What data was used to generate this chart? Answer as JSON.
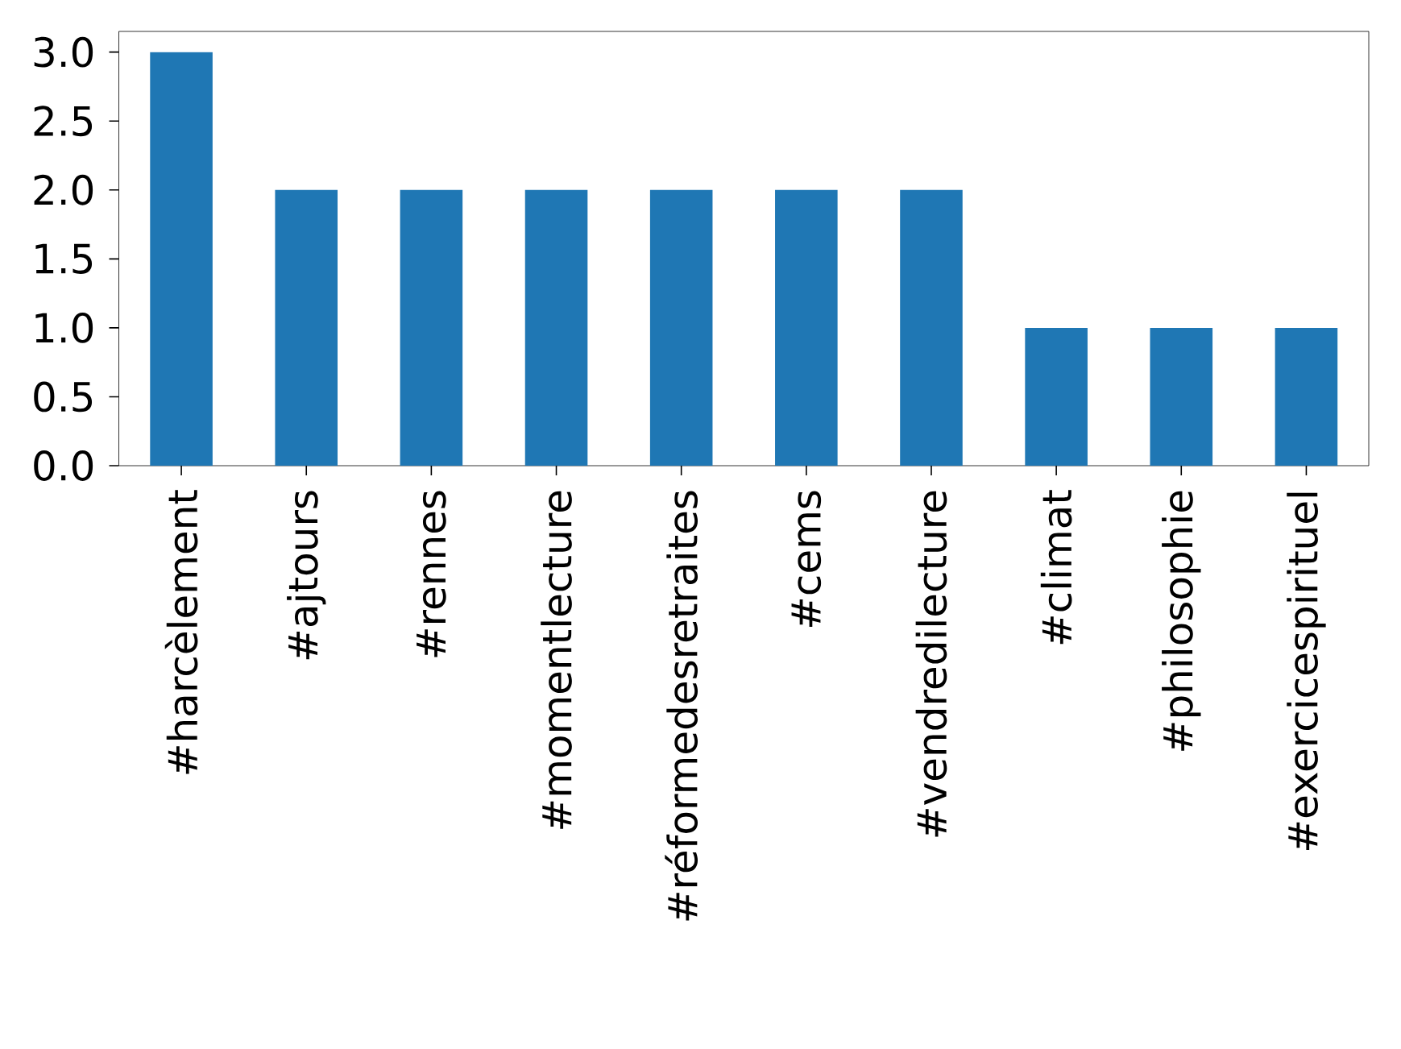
{
  "chart_data": {
    "type": "bar",
    "categories": [
      "#harcèlement",
      "#ajtours",
      "#rennes",
      "#momentlecture",
      "#réformedesretraites",
      "#cems",
      "#vendredilecture",
      "#climat",
      "#philosophie",
      "#exercicespirituel"
    ],
    "values": [
      3,
      2,
      2,
      2,
      2,
      2,
      2,
      1,
      1,
      1
    ],
    "color": "#1f77b4",
    "ylim": [
      0,
      3.15
    ],
    "yticks": [
      {
        "value": 0,
        "label": "0.0"
      },
      {
        "value": 0.5,
        "label": "0.5"
      },
      {
        "value": 1,
        "label": "1.0"
      },
      {
        "value": 1.5,
        "label": "1.5"
      },
      {
        "value": 2,
        "label": "2.0"
      },
      {
        "value": 2.5,
        "label": "2.5"
      },
      {
        "value": 3,
        "label": "3.0"
      }
    ]
  }
}
